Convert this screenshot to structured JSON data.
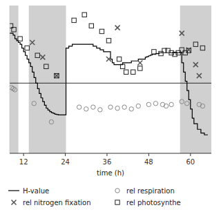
{
  "chart_data": {
    "type": "scatter",
    "title": "",
    "xlabel": "time (h)",
    "xlim": [
      8,
      66
    ],
    "ylim": [
      -1.9,
      2.1
    ],
    "xticks": [
      12,
      24,
      36,
      48,
      60
    ],
    "tick_labels": "x",
    "grid": false,
    "legend": "bottom",
    "hline": 0.0,
    "bands": {
      "color": "#d0d0d0",
      "ranges": [
        [
          8,
          10.5
        ],
        [
          13.5,
          24.2
        ],
        [
          57.0,
          66
        ]
      ]
    },
    "series": [
      {
        "name": "H-value",
        "type": "step",
        "color": "#000000",
        "x": [
          8.0,
          8.5,
          9.0,
          9.5,
          10.0,
          10.5,
          11.0,
          11.5,
          12.0,
          12.5,
          13.0,
          13.5,
          14.0,
          14.5,
          15.0,
          15.5,
          16.0,
          16.5,
          17.0,
          17.5,
          18.0,
          18.5,
          19.0,
          19.5,
          20.0,
          20.5,
          21.0,
          21.5,
          22.0,
          22.5,
          23.0,
          23.5,
          24.0,
          24.2,
          25.0,
          26.0,
          27.0,
          28.0,
          29.0,
          30.0,
          31.0,
          32.0,
          33.0,
          34.0,
          35.0,
          36.0,
          37.0,
          37.5,
          38.0,
          38.5,
          39.0,
          39.5,
          40.0,
          40.5,
          41.0,
          42.0,
          43.0,
          44.0,
          45.0,
          46.0,
          47.0,
          47.5,
          48.0,
          48.5,
          49.0,
          50.0,
          51.0,
          52.0,
          53.0,
          54.0,
          55.0,
          56.0,
          57.0,
          57.5,
          58.0,
          58.5,
          59.0,
          59.5,
          60.0,
          60.5,
          61.0,
          62.0,
          63.0,
          64.0,
          65.0
        ],
        "values": [
          1.35,
          1.35,
          1.3,
          1.2,
          1.15,
          1.1,
          1.05,
          0.95,
          0.85,
          0.75,
          0.65,
          0.55,
          0.45,
          0.3,
          0.15,
          0.0,
          -0.15,
          -0.28,
          -0.4,
          -0.5,
          -0.6,
          -0.68,
          -0.73,
          -0.77,
          -0.8,
          -0.82,
          -0.84,
          -0.85,
          -0.86,
          -0.86,
          -0.86,
          -0.86,
          -0.86,
          0.95,
          1.0,
          1.05,
          1.05,
          1.05,
          1.05,
          1.05,
          1.05,
          1.0,
          0.95,
          0.9,
          0.85,
          0.85,
          0.65,
          0.55,
          0.5,
          0.5,
          0.5,
          0.5,
          0.5,
          0.55,
          0.55,
          0.55,
          0.6,
          0.6,
          0.65,
          0.65,
          0.7,
          0.72,
          0.74,
          0.76,
          0.78,
          0.8,
          0.82,
          0.82,
          0.82,
          0.82,
          0.82,
          0.82,
          0.82,
          0.55,
          0.3,
          0.05,
          -0.2,
          -0.45,
          -0.7,
          -0.95,
          -1.1,
          -1.25,
          -1.35,
          -1.4,
          -1.4
        ]
      },
      {
        "name": "rel nitrogen fixation",
        "type": "scatter",
        "marker": "x",
        "color": "#555555",
        "x": [
          14.5,
          17.5,
          21.5,
          36.5,
          39.0,
          45.5,
          57.5,
          59.5,
          61.5,
          62.5
        ],
        "values": [
          1.1,
          0.7,
          0.2,
          0.65,
          1.5,
          0.55,
          1.35,
          0.9,
          0.5,
          0.2
        ]
      },
      {
        "name": "rel respiration",
        "type": "scatter",
        "marker": "circle",
        "color": "#888888",
        "x": [
          8.5,
          9.0,
          9.5,
          15.0,
          20.0,
          28.0,
          30.0,
          32.0,
          34.0,
          37.0,
          39.0,
          41.0,
          43.0,
          45.0,
          48.0,
          50.0,
          52.0,
          53.0,
          54.5,
          57.5,
          59.0,
          62.5,
          63.5
        ],
        "values": [
          -0.12,
          -0.15,
          -0.18,
          -0.55,
          -1.05,
          -0.65,
          -0.7,
          -0.65,
          -0.72,
          -0.65,
          -0.68,
          -0.65,
          -0.7,
          -0.62,
          -0.58,
          -0.55,
          -0.58,
          -0.62,
          -0.58,
          -0.5,
          -0.55,
          -0.58,
          -0.62
        ]
      },
      {
        "name": "rel photosynthe",
        "type": "scatter",
        "marker": "square",
        "color": "#222222",
        "x": [
          8.3,
          9.2,
          11.0,
          13.0,
          16.0,
          18.5,
          21.5,
          26.5,
          29.5,
          31.5,
          34.5,
          36.5,
          39.5,
          40.5,
          41.5,
          43.5,
          45.5,
          49.5,
          51.5,
          52.5,
          53.5,
          54.5,
          55.5,
          56.5,
          57.5,
          58.5,
          59.5,
          61.5,
          63.5
        ],
        "values": [
          1.55,
          1.45,
          1.2,
          0.95,
          0.75,
          0.45,
          0.2,
          1.7,
          1.85,
          1.55,
          1.4,
          1.15,
          0.65,
          0.45,
          0.3,
          0.3,
          0.4,
          0.85,
          0.8,
          0.88,
          0.88,
          0.82,
          0.78,
          0.82,
          0.9,
          0.82,
          0.88,
          1.05,
          0.95
        ]
      }
    ]
  }
}
